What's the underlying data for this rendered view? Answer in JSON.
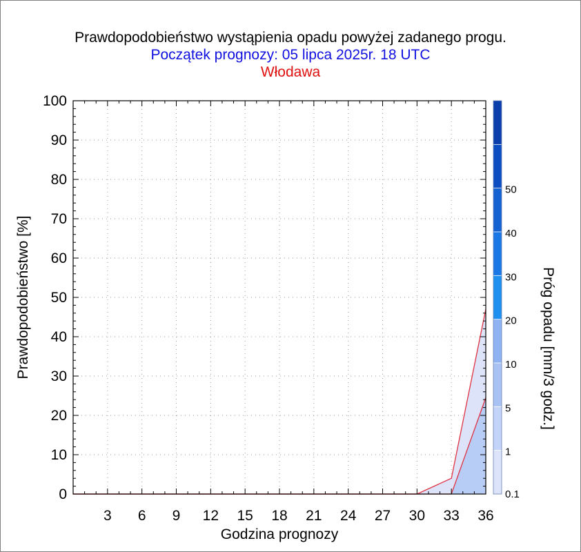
{
  "header": {
    "title": "Prawdopodobieństwo wystąpienia opadu powyżej zadanego progu.",
    "subtitle": "Początek prognozy: 05 lipca 2025r. 18 UTC",
    "station": "Włodawa"
  },
  "chart_data": {
    "type": "area",
    "title": "Prawdopodobieństwo wystąpienia opadu powyżej zadanego progu.",
    "subtitle": "Początek prognozy: 05 lipca 2025r. 18 UTC",
    "station": "Włodawa",
    "xlabel": "Godzina prognozy",
    "ylabel": "Prawdopodobieństwo [%]",
    "xlim": [
      0,
      36
    ],
    "ylim": [
      0,
      100
    ],
    "x_ticks": [
      3,
      6,
      9,
      12,
      15,
      18,
      21,
      24,
      27,
      30,
      33,
      36
    ],
    "y_ticks": [
      0,
      10,
      20,
      30,
      40,
      50,
      60,
      70,
      80,
      90,
      100
    ],
    "grid": true,
    "x": [
      0,
      3,
      6,
      9,
      12,
      15,
      18,
      21,
      24,
      27,
      30,
      33,
      36
    ],
    "series": [
      {
        "threshold": "0.1",
        "color": "#dde4fa",
        "values": [
          0,
          0,
          0,
          0,
          0,
          0,
          0,
          0,
          0,
          0,
          0,
          4,
          47
        ]
      },
      {
        "threshold": "1",
        "color": "#b8cdf6",
        "values": [
          0,
          0,
          0,
          0,
          0,
          0,
          0,
          0,
          0,
          0,
          0,
          0,
          24.5
        ]
      }
    ],
    "colorbar": {
      "label": "Próg opadu [mm/3 godz.]",
      "levels": [
        "0.1",
        "1",
        "5",
        "10",
        "20",
        "30",
        "40",
        "50"
      ],
      "colors": [
        "#dde4fa",
        "#c4d4f8",
        "#a9c2f4",
        "#8fb3f2",
        "#1e90f0",
        "#1a78e6",
        "#1462d2",
        "#0c4ec2",
        "#0a3eaa"
      ]
    }
  }
}
